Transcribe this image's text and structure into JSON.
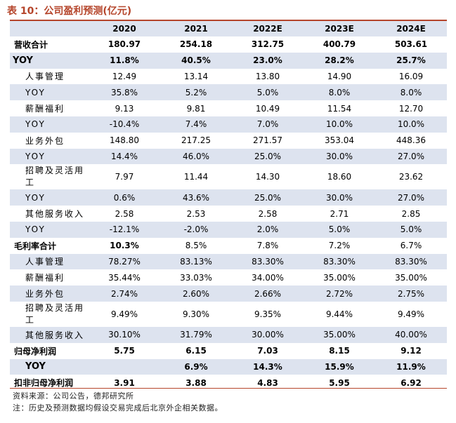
{
  "title": "表 10：公司盈利预测(亿元)",
  "columns": [
    "",
    "2020",
    "2021",
    "2022E",
    "2023E",
    "2024E"
  ],
  "rows": [
    {
      "label": "营收合计",
      "values": [
        "180.97",
        "254.18",
        "312.75",
        "400.79",
        "503.61"
      ]
    },
    {
      "label": "YOY",
      "values": [
        "11.8%",
        "40.5%",
        "23.0%",
        "28.2%",
        "25.7%"
      ]
    },
    {
      "label": "人事管理",
      "values": [
        "12.49",
        "13.14",
        "13.80",
        "14.90",
        "16.09"
      ]
    },
    {
      "label": "YOY",
      "values": [
        "35.8%",
        "5.2%",
        "5.0%",
        "8.0%",
        "8.0%"
      ]
    },
    {
      "label": "薪酬福利",
      "values": [
        "9.13",
        "9.81",
        "10.49",
        "11.54",
        "12.70"
      ]
    },
    {
      "label": "YOY",
      "values": [
        "-10.4%",
        "7.4%",
        "7.0%",
        "10.0%",
        "10.0%"
      ]
    },
    {
      "label": "业务外包",
      "values": [
        "148.80",
        "217.25",
        "271.57",
        "353.04",
        "448.36"
      ]
    },
    {
      "label": "YOY",
      "values": [
        "14.4%",
        "46.0%",
        "25.0%",
        "30.0%",
        "27.0%"
      ]
    },
    {
      "label": "招聘及灵活用工",
      "values": [
        "7.97",
        "11.44",
        "14.30",
        "18.60",
        "23.62"
      ]
    },
    {
      "label": "YOY",
      "values": [
        "0.6%",
        "43.6%",
        "25.0%",
        "30.0%",
        "27.0%"
      ]
    },
    {
      "label": "其他服务收入",
      "values": [
        "2.58",
        "2.53",
        "2.58",
        "2.71",
        "2.85"
      ]
    },
    {
      "label": "YOY",
      "values": [
        "-12.1%",
        "-2.0%",
        "2.0%",
        "5.0%",
        "5.0%"
      ]
    },
    {
      "label": "毛利率合计",
      "values": [
        "10.3%",
        "8.5%",
        "7.8%",
        "7.2%",
        "6.7%"
      ]
    },
    {
      "label": "人事管理",
      "values": [
        "78.27%",
        "83.13%",
        "83.30%",
        "83.30%",
        "83.30%"
      ]
    },
    {
      "label": "薪酬福利",
      "values": [
        "35.44%",
        "33.03%",
        "34.00%",
        "35.00%",
        "35.00%"
      ]
    },
    {
      "label": "业务外包",
      "values": [
        "2.74%",
        "2.60%",
        "2.66%",
        "2.72%",
        "2.75%"
      ]
    },
    {
      "label": "招聘及灵活用工",
      "values": [
        "9.49%",
        "9.30%",
        "9.35%",
        "9.44%",
        "9.49%"
      ]
    },
    {
      "label": "其他服务收入",
      "values": [
        "30.10%",
        "31.79%",
        "30.00%",
        "35.00%",
        "40.00%"
      ]
    },
    {
      "label": "归母净利润",
      "values": [
        "5.75",
        "6.15",
        "7.03",
        "8.15",
        "9.12"
      ]
    },
    {
      "label": "YOY",
      "values": [
        "",
        "6.9%",
        "14.3%",
        "15.9%",
        "11.9%"
      ]
    },
    {
      "label": "扣非归母净利润",
      "values": [
        "3.91",
        "3.88",
        "4.83",
        "5.95",
        "6.92"
      ]
    }
  ],
  "source": "资料来源：公司公告，德邦研究所",
  "note": "注：历史及预测数据均假设交易完成后北京外企相关数据。",
  "colors": {
    "accent": "#b5452b",
    "shade": "#dde3ef"
  }
}
